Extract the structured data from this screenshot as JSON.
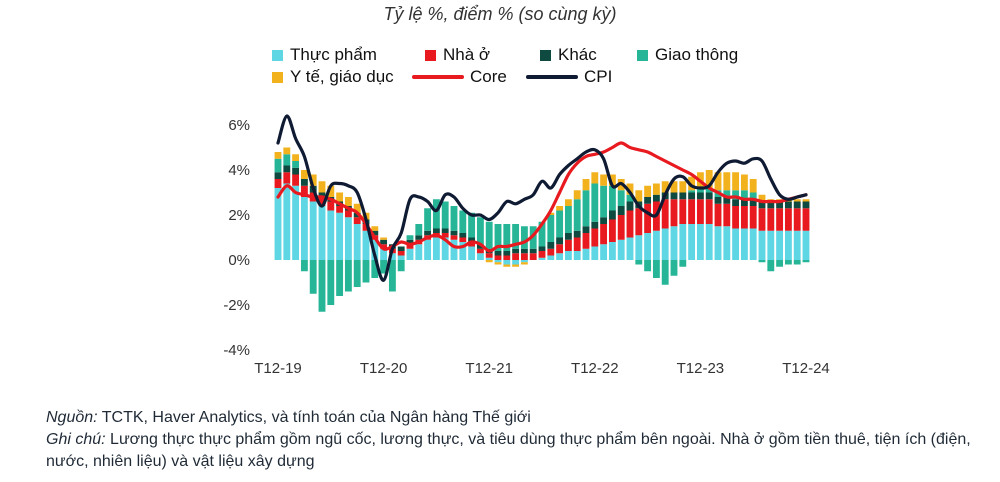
{
  "chart_data": {
    "type": "bar+line",
    "subtitle": "Tỷ lệ %, điểm % (so cùng kỳ)",
    "ylim": [
      -4,
      6
    ],
    "yticks": [
      "6%",
      "4%",
      "2%",
      "0%",
      "-2%",
      "-4%"
    ],
    "ytick_values": [
      6,
      4,
      2,
      0,
      -2,
      -4
    ],
    "xticks": [
      "T12-19",
      "T12-20",
      "T12-21",
      "T12-22",
      "T12-23",
      "T12-24"
    ],
    "x_start": "T12-19",
    "n_months": 61,
    "stacked_series": [
      {
        "name": "Thực phẩm",
        "color": "#5fd6e3",
        "values": [
          3.2,
          3.4,
          3.3,
          2.8,
          2.6,
          2.4,
          2.2,
          2.1,
          1.9,
          1.6,
          1.3,
          0.9,
          0.5,
          0.3,
          0.2,
          0.5,
          0.7,
          0.9,
          1.0,
          1.0,
          0.9,
          0.8,
          0.6,
          0.3,
          0.1,
          -0.1,
          -0.2,
          -0.2,
          -0.1,
          0.0,
          0.1,
          0.2,
          0.3,
          0.4,
          0.4,
          0.5,
          0.6,
          0.7,
          0.8,
          0.9,
          1.0,
          1.1,
          1.2,
          1.3,
          1.4,
          1.5,
          1.6,
          1.6,
          1.6,
          1.6,
          1.5,
          1.5,
          1.4,
          1.4,
          1.4,
          1.3,
          1.3,
          1.3,
          1.3,
          1.3,
          1.3
        ]
      },
      {
        "name": "Nhà ở",
        "color": "#e8191f",
        "values": [
          0.4,
          0.5,
          0.5,
          0.5,
          0.4,
          0.4,
          0.4,
          0.3,
          0.3,
          0.3,
          0.3,
          0.2,
          0.2,
          0.2,
          0.2,
          0.2,
          0.2,
          0.2,
          0.2,
          0.2,
          0.2,
          0.2,
          0.2,
          0.2,
          0.2,
          0.2,
          0.2,
          0.3,
          0.3,
          0.3,
          0.3,
          0.3,
          0.4,
          0.5,
          0.6,
          0.7,
          0.8,
          0.9,
          1.0,
          1.1,
          1.2,
          1.2,
          1.3,
          1.3,
          1.3,
          1.2,
          1.1,
          1.1,
          1.1,
          1.1,
          1.0,
          1.0,
          1.0,
          1.0,
          1.0,
          1.0,
          1.0,
          1.0,
          1.0,
          1.0,
          1.0
        ]
      },
      {
        "name": "Khác",
        "color": "#0e4a3f",
        "values": [
          0.3,
          0.3,
          0.3,
          0.3,
          0.3,
          0.2,
          0.2,
          0.2,
          0.2,
          0.2,
          0.2,
          0.2,
          0.2,
          0.2,
          0.2,
          0.2,
          0.2,
          0.2,
          0.2,
          0.2,
          0.2,
          0.2,
          0.2,
          0.2,
          0.2,
          0.2,
          0.2,
          0.2,
          0.2,
          0.2,
          0.2,
          0.3,
          0.3,
          0.3,
          0.3,
          0.3,
          0.3,
          0.3,
          0.4,
          0.4,
          0.4,
          0.3,
          0.3,
          0.3,
          0.3,
          0.3,
          0.3,
          0.3,
          0.3,
          0.3,
          0.3,
          0.3,
          0.3,
          0.3,
          0.3,
          0.3,
          0.3,
          0.3,
          0.3,
          0.3,
          0.3
        ]
      },
      {
        "name": "Giao thông",
        "color": "#26b597",
        "values": [
          0.6,
          0.5,
          0.3,
          -0.5,
          -1.5,
          -2.3,
          -2.0,
          -1.6,
          -1.4,
          -1.2,
          -1.0,
          -0.8,
          -0.6,
          -1.4,
          -0.5,
          0.2,
          0.5,
          1.0,
          1.3,
          1.2,
          1.1,
          1.0,
          1.1,
          1.2,
          1.2,
          1.2,
          1.2,
          1.1,
          1.0,
          1.0,
          1.1,
          1.2,
          1.2,
          1.2,
          1.4,
          1.6,
          1.7,
          1.4,
          1.1,
          0.7,
          0.3,
          -0.2,
          -0.5,
          -0.8,
          -1.1,
          -0.7,
          -0.3,
          0.1,
          0.2,
          0.2,
          0.3,
          0.3,
          0.4,
          0.4,
          0.3,
          -0.1,
          -0.5,
          -0.3,
          -0.2,
          -0.2,
          -0.1
        ]
      },
      {
        "name": "Y tế, giáo dục",
        "color": "#f2b21e",
        "values": [
          0.3,
          0.3,
          0.3,
          0.4,
          0.5,
          0.5,
          0.5,
          0.4,
          0.4,
          0.4,
          0.3,
          0.2,
          0.1,
          0.0,
          0.0,
          0.0,
          0.0,
          0.0,
          0.0,
          0.0,
          0.0,
          0.0,
          0.0,
          0.0,
          -0.1,
          -0.1,
          -0.1,
          -0.1,
          -0.1,
          0.0,
          0.0,
          0.1,
          0.2,
          0.3,
          0.4,
          0.5,
          0.5,
          0.5,
          0.5,
          0.5,
          0.5,
          0.5,
          0.5,
          0.5,
          0.5,
          0.5,
          0.5,
          0.6,
          0.7,
          0.8,
          0.8,
          0.8,
          0.8,
          0.7,
          0.6,
          0.3,
          0.1,
          0.1,
          0.1,
          0.1,
          0.1
        ]
      }
    ],
    "line_series": [
      {
        "name": "Core",
        "color": "#e8191f",
        "values": [
          2.8,
          3.3,
          3.0,
          2.9,
          2.8,
          2.8,
          2.7,
          2.5,
          2.3,
          2.1,
          1.6,
          1.0,
          0.5,
          0.6,
          0.8,
          0.7,
          0.8,
          1.0,
          1.1,
          0.9,
          0.6,
          0.6,
          0.8,
          0.7,
          0.4,
          0.6,
          0.6,
          0.7,
          0.8,
          1.1,
          1.6,
          2.2,
          3.0,
          3.8,
          4.3,
          4.6,
          4.7,
          4.8,
          5.0,
          5.2,
          5.0,
          4.9,
          4.8,
          4.6,
          4.4,
          4.2,
          4.0,
          3.8,
          3.5,
          3.2,
          3.0,
          2.8,
          2.8,
          2.7,
          2.7,
          2.6,
          2.6,
          2.6,
          2.7,
          2.8,
          2.9
        ]
      },
      {
        "name": "CPI",
        "color": "#0f1a33",
        "values": [
          5.2,
          6.4,
          5.4,
          4.6,
          3.2,
          2.4,
          3.3,
          3.4,
          3.3,
          3.0,
          1.8,
          0.2,
          -0.9,
          0.5,
          1.2,
          2.7,
          2.8,
          2.6,
          2.2,
          2.9,
          2.8,
          2.3,
          2.0,
          2.0,
          1.8,
          2.1,
          2.6,
          2.5,
          2.7,
          2.9,
          3.5,
          3.2,
          3.8,
          4.2,
          4.5,
          4.8,
          4.9,
          4.5,
          3.3,
          3.4,
          3.0,
          2.4,
          2.1,
          2.0,
          2.9,
          3.6,
          3.7,
          3.3,
          3.2,
          3.3,
          3.9,
          4.3,
          4.4,
          4.3,
          4.5,
          4.4,
          3.6,
          2.9,
          2.7,
          2.8,
          2.9
        ]
      }
    ]
  },
  "legend": {
    "thuc_pham": "Thực phẩm",
    "nha_o": "Nhà ở",
    "khac": "Khác",
    "giao_thong": "Giao thông",
    "y_te": "Y tế, giáo dục",
    "core": "Core",
    "cpi": "CPI"
  },
  "notes": {
    "source_label": "Nguồn:",
    "source_text": " TCTK, Haver Analytics, và tính toán của Ngân hàng Thế giới",
    "note_label": "Ghi chú:",
    "note_text": " Lương thực thực phẩm gồm ngũ cốc, lương thực, và tiêu dùng thực phẩm bên ngoài. Nhà ở gồm tiền thuê, tiện ích (điện, nước, nhiên liệu) và vật liệu xây dựng"
  }
}
